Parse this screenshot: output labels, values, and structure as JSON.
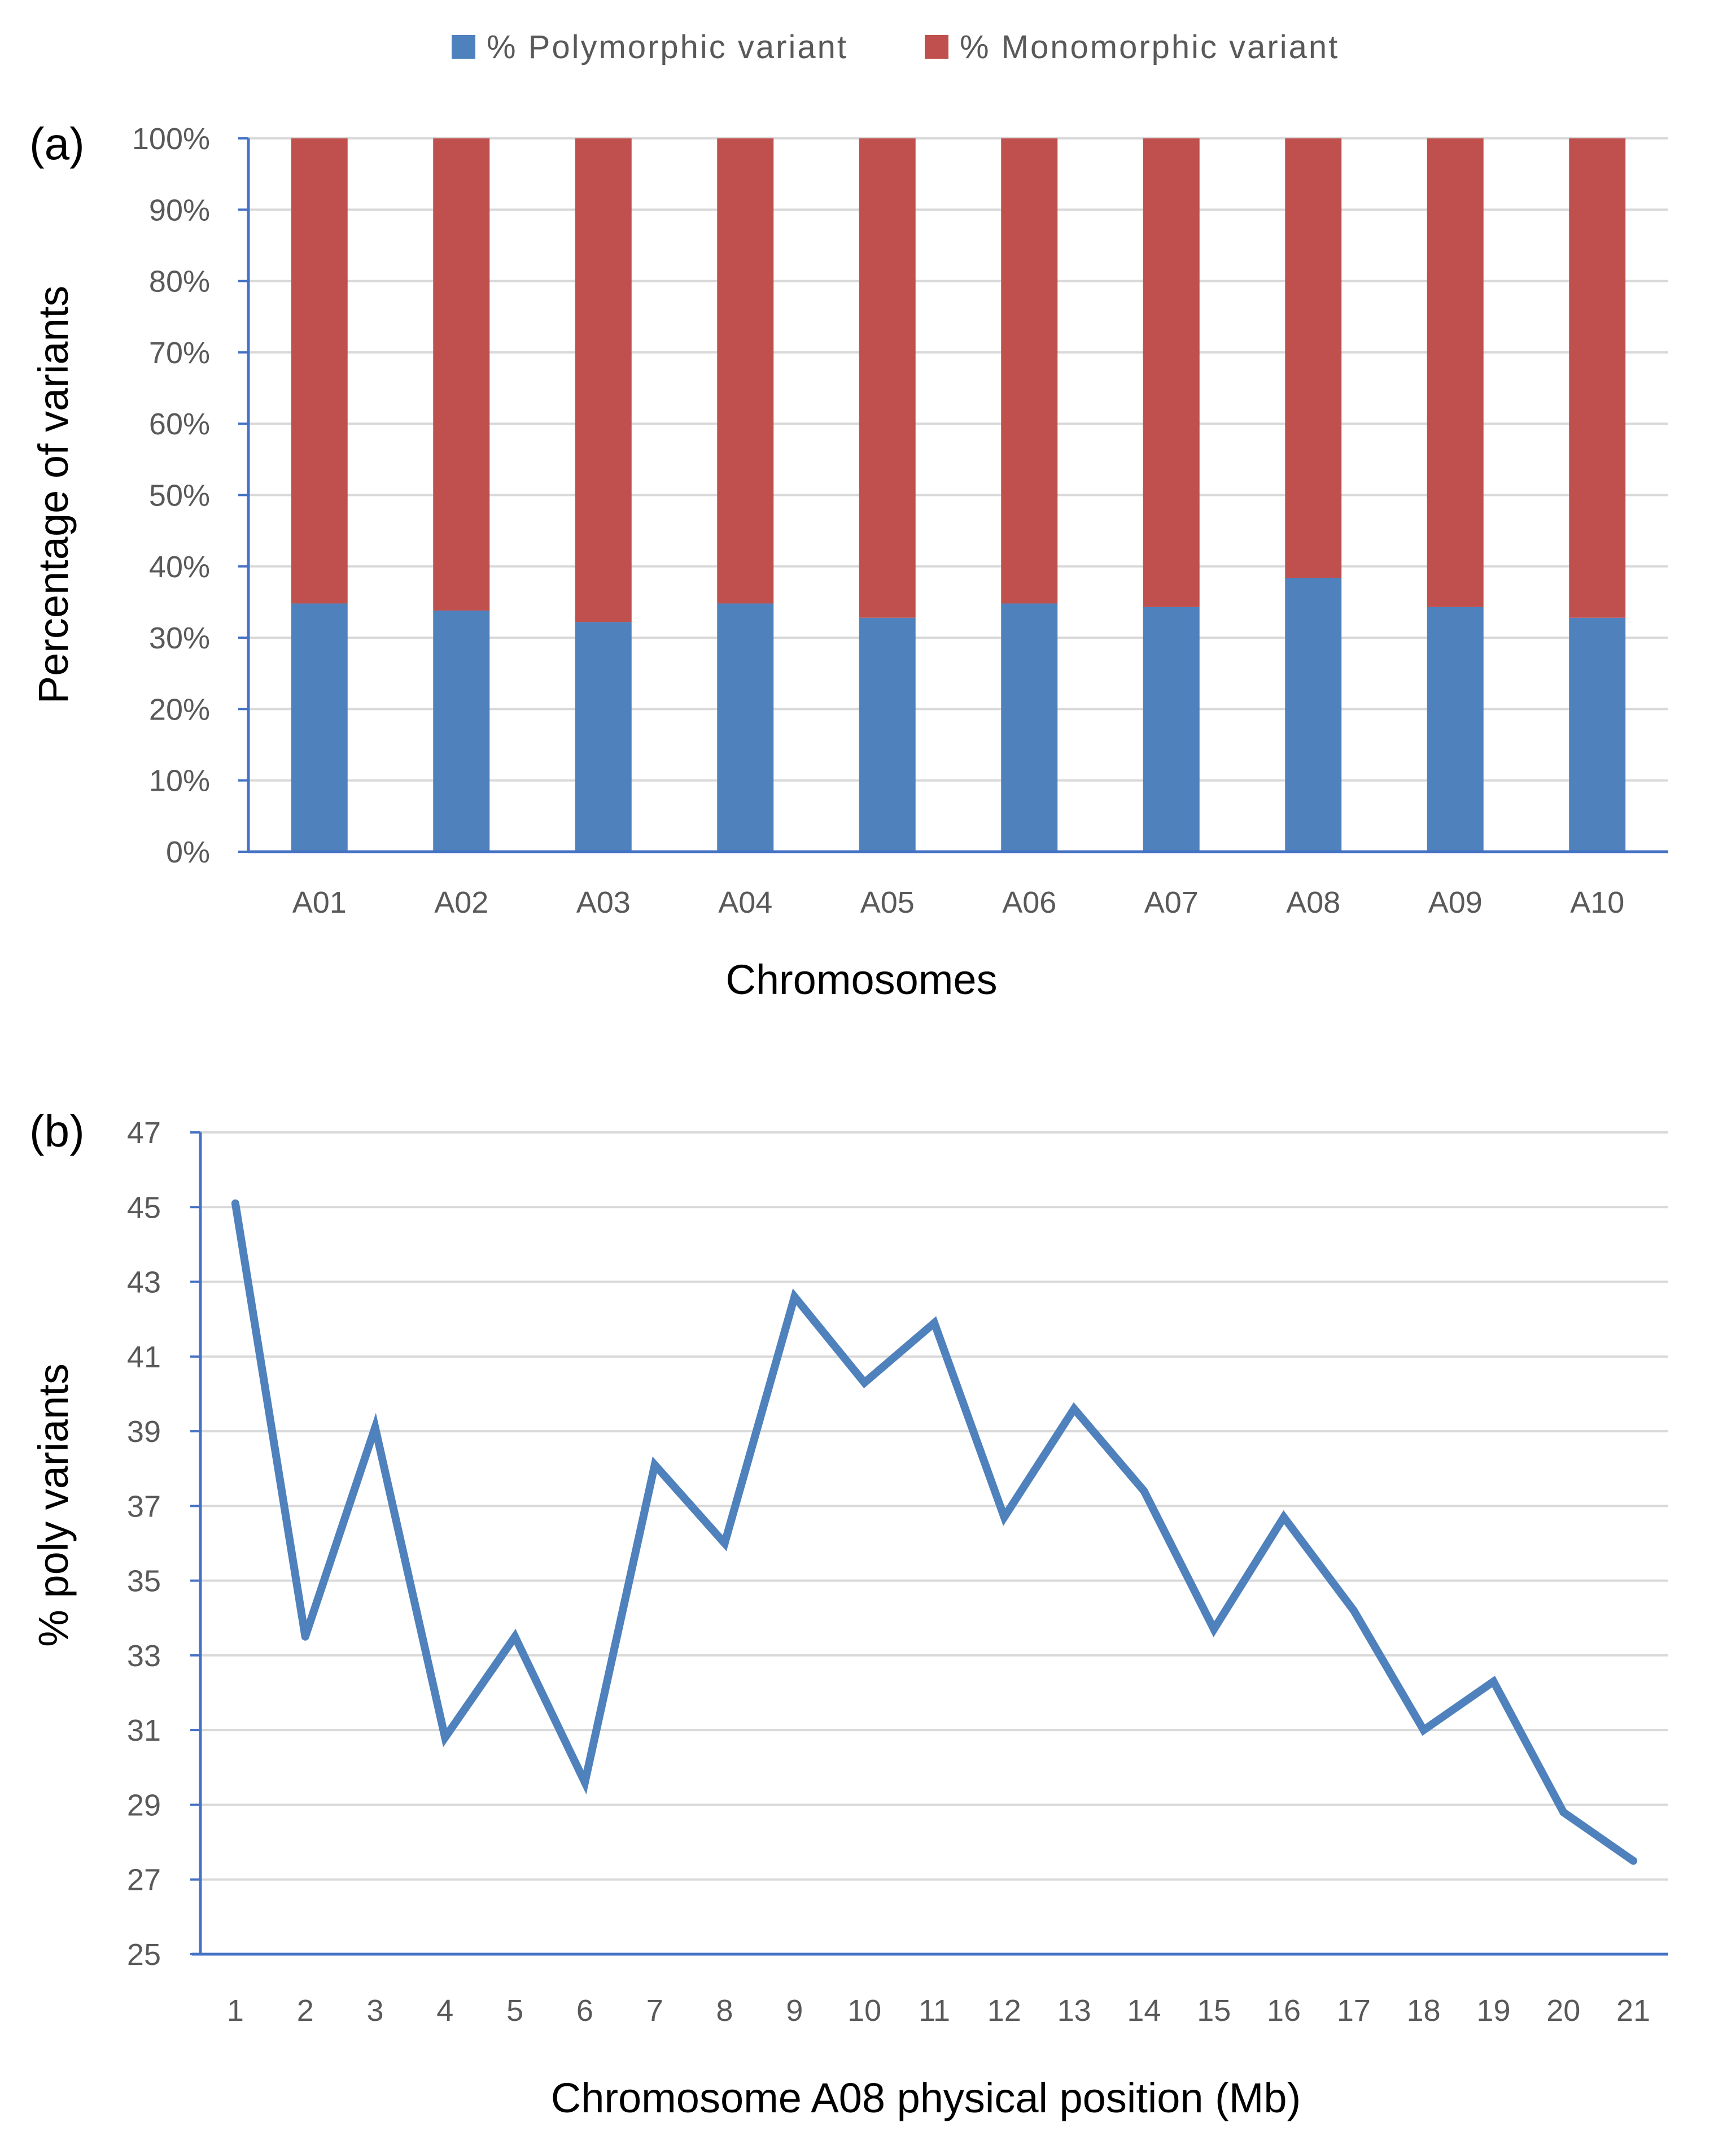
{
  "colors": {
    "polymorphic": "#4f81bd",
    "monomorphic": "#c0504d",
    "line": "#4f81bd",
    "grid": "#d9d9d9",
    "axis": "#4472c4",
    "tick_text": "#595959"
  },
  "chart_data": [
    {
      "type": "bar",
      "stacked": true,
      "panel_label": "(a)",
      "legend": [
        "% Polymorphic variant",
        "% Monomorphic variant"
      ],
      "legend_position": "top",
      "categories": [
        "A01",
        "A02",
        "A03",
        "A04",
        "A05",
        "A06",
        "A07",
        "A08",
        "A09",
        "A10"
      ],
      "series": [
        {
          "name": "% Polymorphic variant",
          "values": [
            34.8,
            33.8,
            32.2,
            34.8,
            32.8,
            34.8,
            34.3,
            38.4,
            34.3,
            32.8
          ]
        },
        {
          "name": "% Monomorphic variant",
          "values": [
            65.2,
            66.2,
            67.8,
            65.2,
            67.2,
            65.2,
            65.7,
            61.6,
            65.7,
            67.2
          ]
        }
      ],
      "xlabel": "Chromosomes",
      "ylabel": "Percentage of variants",
      "ylim": [
        0,
        100
      ],
      "yticks": [
        "0%",
        "10%",
        "20%",
        "30%",
        "40%",
        "50%",
        "60%",
        "70%",
        "80%",
        "90%",
        "100%"
      ],
      "grid": true
    },
    {
      "type": "line",
      "panel_label": "(b)",
      "x": [
        1,
        2,
        3,
        4,
        5,
        6,
        7,
        8,
        9,
        10,
        11,
        12,
        13,
        14,
        15,
        16,
        17,
        18,
        19,
        20,
        21
      ],
      "x_tick_labels": [
        "1",
        "2",
        "3",
        "4",
        "5",
        "6",
        "7",
        "8",
        "9",
        "10",
        "11",
        "12",
        "13",
        "14",
        "15",
        "16",
        "17",
        "18",
        "19",
        "20",
        "21"
      ],
      "series": [
        {
          "name": "% poly variants",
          "values": [
            45.1,
            33.5,
            39.1,
            30.8,
            33.5,
            29.6,
            38.1,
            36.0,
            42.6,
            40.3,
            41.9,
            36.7,
            39.6,
            37.4,
            33.7,
            36.7,
            34.2,
            31.0,
            32.3,
            28.8,
            27.5
          ]
        }
      ],
      "xlabel": "Chromosome A08 physical position  (Mb)",
      "ylabel": "% poly variants",
      "ylim": [
        25,
        47
      ],
      "yticks": [
        "25",
        "27",
        "29",
        "31",
        "33",
        "35",
        "37",
        "39",
        "41",
        "43",
        "45",
        "47"
      ],
      "grid": true
    }
  ]
}
